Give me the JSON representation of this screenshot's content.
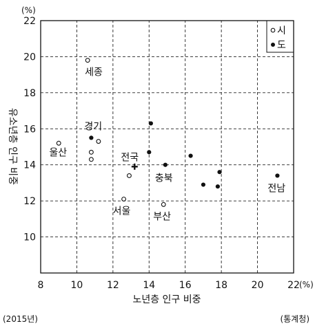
{
  "chart_data": {
    "type": "scatter",
    "xlabel": "노년층 인구 비중",
    "ylabel": "유소년층 인구 비중",
    "x_unit": "(%)",
    "y_unit": "(%)",
    "xlim": [
      8,
      22
    ],
    "ylim": [
      8,
      22
    ],
    "x_ticks": [
      8,
      10,
      12,
      14,
      16,
      18,
      20
    ],
    "x_last_tick": "22",
    "y_ticks": [
      10,
      12,
      14,
      16,
      18,
      20,
      22
    ],
    "grid": true,
    "legend_position": "top-right",
    "series": [
      {
        "name": "시",
        "marker": "open-circle",
        "points": [
          {
            "x": 10.6,
            "y": 19.8,
            "label": "세종"
          },
          {
            "x": 9.0,
            "y": 15.2,
            "label": "울산"
          },
          {
            "x": 11.2,
            "y": 15.3,
            "label": ""
          },
          {
            "x": 10.8,
            "y": 14.7,
            "label": ""
          },
          {
            "x": 10.8,
            "y": 14.3,
            "label": ""
          },
          {
            "x": 12.9,
            "y": 13.4,
            "label": ""
          },
          {
            "x": 12.6,
            "y": 12.1,
            "label": "서울"
          },
          {
            "x": 14.8,
            "y": 11.8,
            "label": "부산"
          }
        ]
      },
      {
        "name": "도",
        "marker": "filled-circle",
        "points": [
          {
            "x": 10.8,
            "y": 15.5,
            "label": "경기"
          },
          {
            "x": 14.1,
            "y": 16.3,
            "label": ""
          },
          {
            "x": 14.0,
            "y": 14.7,
            "label": ""
          },
          {
            "x": 14.9,
            "y": 14.0,
            "label": "충북"
          },
          {
            "x": 16.3,
            "y": 14.5,
            "label": ""
          },
          {
            "x": 17.0,
            "y": 12.9,
            "label": ""
          },
          {
            "x": 17.9,
            "y": 13.6,
            "label": ""
          },
          {
            "x": 17.8,
            "y": 12.8,
            "label": ""
          },
          {
            "x": 21.1,
            "y": 13.4,
            "label": "전남"
          }
        ]
      }
    ],
    "national": {
      "x": 13.2,
      "y": 13.9,
      "label": "전국",
      "marker": "plus"
    }
  },
  "footer": {
    "year": "(2015년)",
    "source": "(통계청)"
  }
}
